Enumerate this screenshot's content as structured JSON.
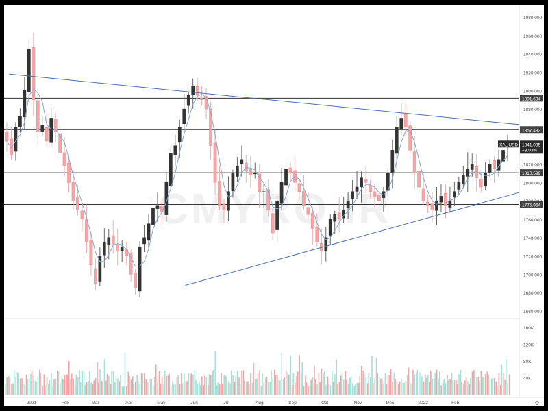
{
  "chart_data": {
    "type": "candlestick",
    "symbol": "XAUUSD",
    "last_price": "1841.035",
    "change_pct": "+3.03%",
    "price_axis_ticks": [
      "1980.000",
      "1960.000",
      "1940.000",
      "1920.000",
      "1900.000",
      "1880.000",
      "1860.000",
      "1840.000",
      "1820.000",
      "1800.000",
      "1780.000",
      "1760.000",
      "1740.000",
      "1720.000",
      "1700.000",
      "1680.000",
      "1660.000"
    ],
    "price_ylim": [
      1655,
      1990
    ],
    "horizontal_levels": [
      {
        "price": 1891.694,
        "label": "1891.694"
      },
      {
        "price": 1857.482,
        "label": "1857.482"
      },
      {
        "price": 1810.599,
        "label": "1810.599"
      },
      {
        "price": 1775.964,
        "label": "1775.964"
      }
    ],
    "trendlines": [
      {
        "from": {
          "week": 50.0,
          "price": 1918
        },
        "to": {
          "week": 118.0,
          "price": 1863
        }
      },
      {
        "from": {
          "week": 73.5,
          "price": 1688
        },
        "to": {
          "week": 118.0,
          "price": 1789
        }
      }
    ],
    "volume_axis_ticks": [
      "160K",
      "120K",
      "80K",
      "40K"
    ],
    "volume_ylim": [
      0,
      160000
    ],
    "x_month_labels": [
      {
        "label": "2021",
        "week": 53
      },
      {
        "label": "Feb",
        "week": 57.5
      },
      {
        "label": "Mar",
        "week": 61.5
      },
      {
        "label": "Apr",
        "week": 66
      },
      {
        "label": "May",
        "week": 70.3
      },
      {
        "label": "Jun",
        "week": 74.7
      },
      {
        "label": "Jul",
        "week": 79
      },
      {
        "label": "Aug",
        "week": 83.4
      },
      {
        "label": "Sep",
        "week": 87.8
      },
      {
        "label": "Oct",
        "week": 92.1
      },
      {
        "label": "Nov",
        "week": 96.5
      },
      {
        "label": "Dec",
        "week": 100.8
      },
      {
        "label": "2022",
        "week": 105.2
      },
      {
        "label": "Feb",
        "week": 109.5
      }
    ],
    "close_path": [
      [
        0,
        1845
      ],
      [
        1,
        1830
      ],
      [
        2,
        1860
      ],
      [
        3,
        1872
      ],
      [
        4,
        1900
      ],
      [
        5,
        1945
      ],
      [
        6,
        1890
      ],
      [
        7,
        1855
      ],
      [
        8,
        1862
      ],
      [
        9,
        1845
      ],
      [
        10,
        1870
      ],
      [
        11,
        1855
      ],
      [
        12,
        1832
      ],
      [
        13,
        1818
      ],
      [
        14,
        1800
      ],
      [
        15,
        1780
      ],
      [
        16,
        1770
      ],
      [
        17,
        1760
      ],
      [
        18,
        1735
      ],
      [
        19,
        1710
      ],
      [
        20,
        1690
      ],
      [
        21,
        1720
      ],
      [
        22,
        1735
      ],
      [
        23,
        1740
      ],
      [
        24,
        1733
      ],
      [
        25,
        1725
      ],
      [
        26,
        1730
      ],
      [
        27,
        1720
      ],
      [
        28,
        1700
      ],
      [
        29,
        1685
      ],
      [
        30,
        1730
      ],
      [
        31,
        1740
      ],
      [
        32,
        1755
      ],
      [
        33,
        1772
      ],
      [
        34,
        1775
      ],
      [
        35,
        1768
      ],
      [
        36,
        1800
      ],
      [
        37,
        1832
      ],
      [
        38,
        1840
      ],
      [
        39,
        1860
      ],
      [
        40,
        1880
      ],
      [
        41,
        1895
      ],
      [
        42,
        1905
      ],
      [
        43,
        1895
      ],
      [
        44,
        1890
      ],
      [
        45,
        1880
      ],
      [
        46,
        1840
      ],
      [
        47,
        1800
      ],
      [
        48,
        1775
      ],
      [
        49,
        1770
      ],
      [
        50,
        1790
      ],
      [
        51,
        1810
      ],
      [
        52,
        1818
      ],
      [
        53,
        1825
      ],
      [
        54,
        1812
      ],
      [
        55,
        1808
      ],
      [
        56,
        1810
      ],
      [
        57,
        1790
      ],
      [
        58,
        1790
      ],
      [
        59,
        1770
      ],
      [
        60,
        1745
      ],
      [
        61,
        1780
      ],
      [
        62,
        1800
      ],
      [
        63,
        1815
      ],
      [
        64,
        1810
      ],
      [
        65,
        1800
      ],
      [
        66,
        1790
      ],
      [
        67,
        1775
      ],
      [
        68,
        1765
      ],
      [
        69,
        1750
      ],
      [
        70,
        1735
      ],
      [
        71,
        1725
      ],
      [
        72,
        1740
      ],
      [
        73,
        1760
      ],
      [
        74,
        1765
      ],
      [
        75,
        1760
      ],
      [
        76,
        1770
      ],
      [
        77,
        1780
      ],
      [
        78,
        1790
      ],
      [
        79,
        1795
      ],
      [
        80,
        1805
      ],
      [
        81,
        1800
      ],
      [
        82,
        1790
      ],
      [
        83,
        1785
      ],
      [
        84,
        1780
      ],
      [
        85,
        1790
      ],
      [
        86,
        1810
      ],
      [
        87,
        1835
      ],
      [
        88,
        1860
      ],
      [
        89,
        1870
      ],
      [
        90,
        1860
      ],
      [
        91,
        1835
      ],
      [
        92,
        1810
      ],
      [
        93,
        1795
      ],
      [
        94,
        1780
      ],
      [
        95,
        1775
      ],
      [
        96,
        1770
      ],
      [
        97,
        1780
      ],
      [
        98,
        1785
      ],
      [
        99,
        1775
      ],
      [
        100,
        1780
      ],
      [
        101,
        1790
      ],
      [
        102,
        1800
      ],
      [
        103,
        1808
      ],
      [
        104,
        1815
      ],
      [
        105,
        1820
      ],
      [
        106,
        1805
      ],
      [
        107,
        1795
      ],
      [
        108,
        1810
      ],
      [
        109,
        1820
      ],
      [
        110,
        1815
      ],
      [
        111,
        1825
      ],
      [
        112,
        1835
      ],
      [
        113,
        1841
      ]
    ]
  },
  "watermark": "CMYRO.IR"
}
